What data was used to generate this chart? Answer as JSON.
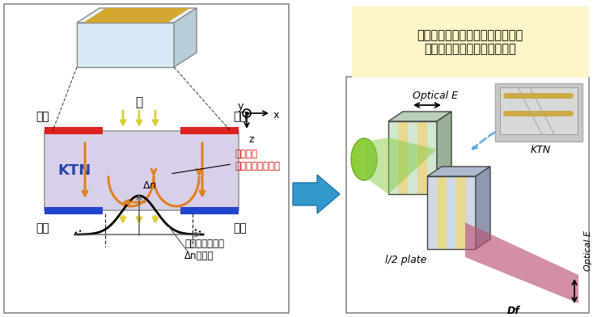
{
  "bg_color": "#ffffff",
  "title_bg": "#fdf5c8",
  "title_text": "一対のシリンダー形状のレンズが\n円形の可変焦点レンズを形成",
  "ktn_box_color": "#d8eaf5",
  "ktn_crystal_gold": "#d4a830",
  "electrode_red": "#dd2222",
  "electrode_blue": "#2244cc",
  "ktn_fill": "#d8d0e8",
  "orange_arrow": "#e08020",
  "annotation_red": "#dd0000",
  "annotation_text_red": "窓領域で\n広がっている電界",
  "label_yoko": "陽極",
  "label_yin": "陰極",
  "label_hikari": "光",
  "label_ktn": "KTN",
  "label_electrode_note": "電極のそばでは\nΔnは低い",
  "optical_e_label": "Optical E",
  "ktn_label": "KTN",
  "half_plate_label": "l/2 plate",
  "df_label": "Df",
  "optical_e2_label": "Optical E",
  "arrow_big_color": "#3399cc"
}
